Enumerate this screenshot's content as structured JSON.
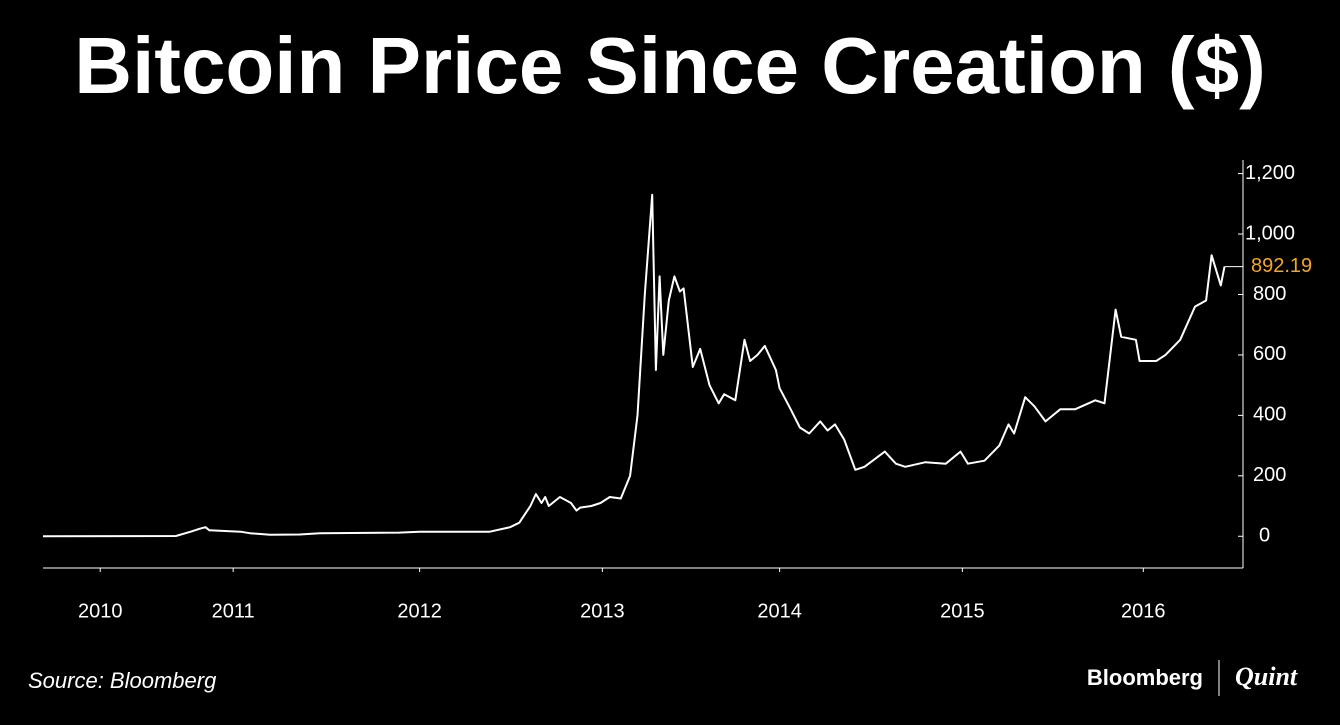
{
  "chart_data": {
    "type": "line",
    "title": "Bitcoin Price Since Creation ($)",
    "source": "Source: Bloomberg",
    "logos": [
      "Bloomberg",
      "Quint"
    ],
    "x": [
      2010.5,
      2011.22,
      2011.3,
      2011.35,
      2011.38,
      2011.4,
      2011.57,
      2011.62,
      2011.73,
      2011.89,
      2012.0,
      2012.43,
      2012.54,
      2012.7,
      2012.92,
      2013.03,
      2013.08,
      2013.14,
      2013.17,
      2013.2,
      2013.22,
      2013.24,
      2013.28,
      2013.3,
      2013.36,
      2013.39,
      2013.41,
      2013.47,
      2013.52,
      2013.57,
      2013.63,
      2013.68,
      2013.72,
      2013.76,
      2013.8,
      2013.82,
      2013.84,
      2013.86,
      2013.89,
      2013.92,
      2013.95,
      2013.97,
      2014.02,
      2014.06,
      2014.11,
      2014.16,
      2014.19,
      2014.25,
      2014.3,
      2014.33,
      2014.37,
      2014.41,
      2014.47,
      2014.49,
      2014.55,
      2014.6,
      2014.65,
      2014.71,
      2014.75,
      2014.79,
      2014.84,
      2014.9,
      2014.95,
      2015.06,
      2015.12,
      2015.17,
      2015.28,
      2015.39,
      2015.47,
      2015.51,
      2015.6,
      2015.68,
      2015.73,
      2015.76,
      2015.82,
      2015.87,
      2015.93,
      2016.01,
      2016.09,
      2016.2,
      2016.25,
      2016.31,
      2016.34,
      2016.42,
      2016.44,
      2016.53,
      2016.58,
      2016.66,
      2016.74,
      2016.8,
      2016.83,
      2016.88,
      2016.9
    ],
    "series": [
      {
        "color": "#ffffff",
        "values": [
          0.1,
          1,
          15,
          25,
          30,
          20,
          15,
          10,
          5,
          6,
          10,
          12,
          15,
          15,
          15,
          30,
          45,
          100,
          140,
          110,
          130,
          100,
          120,
          130,
          110,
          85,
          95,
          100,
          110,
          130,
          125,
          200,
          400,
          800,
          1130,
          550,
          860,
          600,
          780,
          860,
          810,
          820,
          560,
          620,
          500,
          440,
          470,
          450,
          650,
          580,
          600,
          630,
          550,
          490,
          420,
          360,
          340,
          380,
          350,
          370,
          320,
          220,
          230,
          280,
          240,
          230,
          245,
          240,
          280,
          240,
          250,
          300,
          370,
          340,
          460,
          430,
          380,
          420,
          420,
          450,
          440,
          750,
          660,
          650,
          580,
          580,
          600,
          650,
          760,
          780,
          930,
          830,
          892.19
        ]
      }
    ],
    "last_label_color": "#f5a623",
    "xlim": [
      2010.5,
      2017.0
    ],
    "xticks": [
      {
        "value": 2010.81,
        "label": "2010"
      },
      {
        "value": 2011.53,
        "label": "2011"
      },
      {
        "value": 2012.54,
        "label": "2012"
      },
      {
        "value": 2013.53,
        "label": "2013"
      },
      {
        "value": 2014.49,
        "label": "2014"
      },
      {
        "value": 2015.48,
        "label": "2015"
      },
      {
        "value": 2016.46,
        "label": "2016"
      }
    ],
    "ylim": [
      -105,
      1245
    ],
    "yticks": [
      0,
      200,
      400,
      600,
      800,
      {
        "value": 1000,
        "label": "1,000"
      },
      {
        "value": 1200,
        "label": "1,200"
      }
    ]
  }
}
